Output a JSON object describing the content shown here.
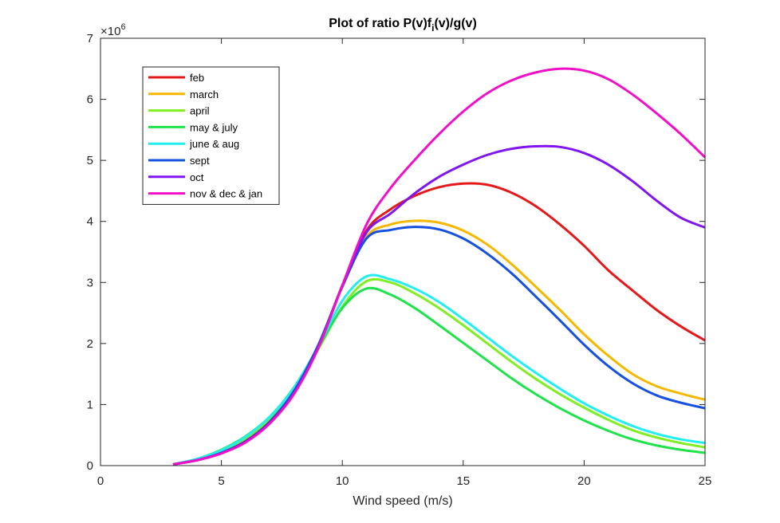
{
  "chart_data": {
    "type": "line",
    "title_main": "Plot of ratio P(v)f",
    "title_sub": "i",
    "title_tail": "(v)/g(v)",
    "xlabel": "Wind speed (m/s)",
    "ylabel": "",
    "xlim": [
      0,
      25
    ],
    "ylim": [
      0,
      7
    ],
    "xticks": [
      0,
      5,
      10,
      15,
      20,
      25
    ],
    "yticks": [
      0,
      1,
      2,
      3,
      4,
      5,
      6,
      7
    ],
    "yscale_exponent_base": "×10",
    "yscale_exponent_power": "6",
    "y_multiplier": 1000000,
    "grid": false,
    "legend_position": "top-left",
    "series": [
      {
        "name": "feb",
        "color": "#e41a1a",
        "points": [
          [
            3,
            0.02
          ],
          [
            4,
            0.09
          ],
          [
            5,
            0.21
          ],
          [
            6,
            0.4
          ],
          [
            7,
            0.72
          ],
          [
            8,
            1.2
          ],
          [
            9,
            1.95
          ],
          [
            10,
            2.95
          ],
          [
            11,
            3.85
          ],
          [
            12,
            4.2
          ],
          [
            13,
            4.42
          ],
          [
            14,
            4.56
          ],
          [
            15,
            4.62
          ],
          [
            16,
            4.6
          ],
          [
            17,
            4.47
          ],
          [
            18,
            4.25
          ],
          [
            19,
            3.95
          ],
          [
            20,
            3.6
          ],
          [
            21,
            3.2
          ],
          [
            22,
            2.87
          ],
          [
            23,
            2.55
          ],
          [
            24,
            2.28
          ],
          [
            25,
            2.05
          ]
        ]
      },
      {
        "name": "march",
        "color": "#f5b800",
        "points": [
          [
            3,
            0.02
          ],
          [
            4,
            0.09
          ],
          [
            5,
            0.21
          ],
          [
            6,
            0.41
          ],
          [
            7,
            0.73
          ],
          [
            8,
            1.21
          ],
          [
            9,
            1.95
          ],
          [
            10,
            2.93
          ],
          [
            11,
            3.75
          ],
          [
            12,
            3.95
          ],
          [
            13,
            4.01
          ],
          [
            14,
            3.98
          ],
          [
            15,
            3.85
          ],
          [
            16,
            3.62
          ],
          [
            17,
            3.3
          ],
          [
            18,
            2.93
          ],
          [
            19,
            2.55
          ],
          [
            20,
            2.15
          ],
          [
            21,
            1.8
          ],
          [
            22,
            1.5
          ],
          [
            23,
            1.3
          ],
          [
            24,
            1.18
          ],
          [
            25,
            1.08
          ]
        ]
      },
      {
        "name": "april",
        "color": "#80ee20",
        "points": [
          [
            3,
            0.02
          ],
          [
            4,
            0.1
          ],
          [
            5,
            0.24
          ],
          [
            6,
            0.45
          ],
          [
            7,
            0.78
          ],
          [
            8,
            1.25
          ],
          [
            9,
            1.9
          ],
          [
            10,
            2.6
          ],
          [
            11,
            3.02
          ],
          [
            12,
            3.0
          ],
          [
            13,
            2.82
          ],
          [
            14,
            2.58
          ],
          [
            15,
            2.3
          ],
          [
            16,
            2.0
          ],
          [
            17,
            1.7
          ],
          [
            18,
            1.42
          ],
          [
            19,
            1.17
          ],
          [
            20,
            0.95
          ],
          [
            21,
            0.75
          ],
          [
            22,
            0.58
          ],
          [
            23,
            0.46
          ],
          [
            24,
            0.37
          ],
          [
            25,
            0.3
          ]
        ]
      },
      {
        "name": "may & july",
        "color": "#1ee34a",
        "points": [
          [
            3,
            0.02
          ],
          [
            4,
            0.11
          ],
          [
            5,
            0.26
          ],
          [
            6,
            0.48
          ],
          [
            7,
            0.8
          ],
          [
            8,
            1.28
          ],
          [
            9,
            1.93
          ],
          [
            10,
            2.58
          ],
          [
            11,
            2.9
          ],
          [
            12,
            2.8
          ],
          [
            13,
            2.58
          ],
          [
            14,
            2.3
          ],
          [
            15,
            2.01
          ],
          [
            16,
            1.72
          ],
          [
            17,
            1.43
          ],
          [
            18,
            1.17
          ],
          [
            19,
            0.94
          ],
          [
            20,
            0.74
          ],
          [
            21,
            0.57
          ],
          [
            22,
            0.43
          ],
          [
            23,
            0.33
          ],
          [
            24,
            0.26
          ],
          [
            25,
            0.21
          ]
        ]
      },
      {
        "name": "june & aug",
        "color": "#22eef0",
        "points": [
          [
            3,
            0.02
          ],
          [
            4,
            0.11
          ],
          [
            5,
            0.25
          ],
          [
            6,
            0.47
          ],
          [
            7,
            0.8
          ],
          [
            8,
            1.27
          ],
          [
            9,
            1.95
          ],
          [
            10,
            2.7
          ],
          [
            11,
            3.1
          ],
          [
            12,
            3.05
          ],
          [
            13,
            2.9
          ],
          [
            14,
            2.68
          ],
          [
            15,
            2.4
          ],
          [
            16,
            2.1
          ],
          [
            17,
            1.8
          ],
          [
            18,
            1.52
          ],
          [
            19,
            1.26
          ],
          [
            20,
            1.02
          ],
          [
            21,
            0.82
          ],
          [
            22,
            0.65
          ],
          [
            23,
            0.52
          ],
          [
            24,
            0.43
          ],
          [
            25,
            0.37
          ]
        ]
      },
      {
        "name": "sept",
        "color": "#1550e0",
        "points": [
          [
            3,
            0.02
          ],
          [
            4,
            0.09
          ],
          [
            5,
            0.21
          ],
          [
            6,
            0.4
          ],
          [
            7,
            0.72
          ],
          [
            8,
            1.22
          ],
          [
            9,
            1.97
          ],
          [
            10,
            2.93
          ],
          [
            11,
            3.72
          ],
          [
            12,
            3.86
          ],
          [
            13,
            3.91
          ],
          [
            14,
            3.87
          ],
          [
            15,
            3.72
          ],
          [
            16,
            3.47
          ],
          [
            17,
            3.15
          ],
          [
            18,
            2.77
          ],
          [
            19,
            2.38
          ],
          [
            20,
            1.98
          ],
          [
            21,
            1.63
          ],
          [
            22,
            1.35
          ],
          [
            23,
            1.15
          ],
          [
            24,
            1.03
          ],
          [
            25,
            0.94
          ]
        ]
      },
      {
        "name": "oct",
        "color": "#8015f0",
        "points": [
          [
            3,
            0.02
          ],
          [
            4,
            0.09
          ],
          [
            5,
            0.2
          ],
          [
            6,
            0.39
          ],
          [
            7,
            0.7
          ],
          [
            8,
            1.18
          ],
          [
            9,
            1.93
          ],
          [
            10,
            2.95
          ],
          [
            11,
            3.82
          ],
          [
            12,
            4.13
          ],
          [
            13,
            4.46
          ],
          [
            14,
            4.73
          ],
          [
            15,
            4.93
          ],
          [
            16,
            5.09
          ],
          [
            17,
            5.19
          ],
          [
            18,
            5.23
          ],
          [
            19,
            5.22
          ],
          [
            20,
            5.12
          ],
          [
            21,
            4.93
          ],
          [
            22,
            4.66
          ],
          [
            23,
            4.34
          ],
          [
            24,
            4.06
          ],
          [
            25,
            3.9
          ]
        ]
      },
      {
        "name": "nov & dec & jan",
        "color": "#f010c8",
        "points": [
          [
            3,
            0.02
          ],
          [
            4,
            0.09
          ],
          [
            5,
            0.2
          ],
          [
            6,
            0.38
          ],
          [
            7,
            0.69
          ],
          [
            8,
            1.17
          ],
          [
            9,
            1.92
          ],
          [
            10,
            2.95
          ],
          [
            11,
            3.95
          ],
          [
            12,
            4.55
          ],
          [
            13,
            5.01
          ],
          [
            14,
            5.43
          ],
          [
            15,
            5.8
          ],
          [
            16,
            6.1
          ],
          [
            17,
            6.31
          ],
          [
            18,
            6.44
          ],
          [
            19,
            6.5
          ],
          [
            20,
            6.47
          ],
          [
            21,
            6.33
          ],
          [
            22,
            6.08
          ],
          [
            23,
            5.77
          ],
          [
            24,
            5.43
          ],
          [
            25,
            5.05
          ]
        ]
      }
    ]
  }
}
